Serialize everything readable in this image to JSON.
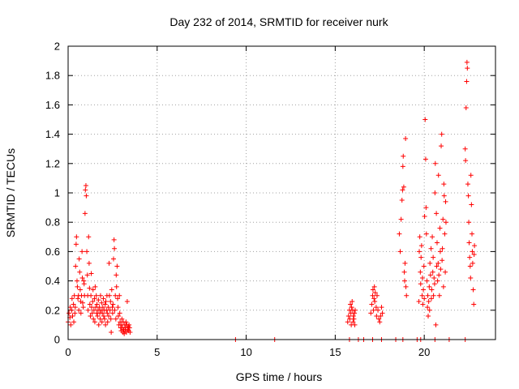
{
  "chart_data": {
    "type": "scatter",
    "title": "Day 232 of 2014, SRMTID for receiver nurk",
    "xlabel": "GPS time / hours",
    "ylabel": "SRMTID / TECUs",
    "xlim": [
      0,
      24
    ],
    "ylim": [
      0,
      2
    ],
    "xticks": [
      0,
      5,
      10,
      15,
      20
    ],
    "yticks": [
      0,
      0.2,
      0.4,
      0.6,
      0.8,
      1,
      1.2,
      1.4,
      1.6,
      1.8,
      2
    ],
    "xtick_labels": [
      "0",
      "5",
      "10",
      "15",
      "20"
    ],
    "ytick_labels": [
      "0",
      "0.2",
      "0.4",
      "0.6",
      "0.8",
      "1",
      "1.2",
      "1.4",
      "1.6",
      "1.8",
      "2"
    ],
    "grid": true,
    "marker": "+",
    "series": [
      {
        "name": "SRMTID",
        "color": "#ff0000",
        "points": [
          [
            0.0,
            0.12
          ],
          [
            0.05,
            0.18
          ],
          [
            0.1,
            0.15
          ],
          [
            0.12,
            0.22
          ],
          [
            0.15,
            0.1
          ],
          [
            0.2,
            0.2
          ],
          [
            0.22,
            0.28
          ],
          [
            0.25,
            0.16
          ],
          [
            0.3,
            0.24
          ],
          [
            0.32,
            0.12
          ],
          [
            0.35,
            0.3
          ],
          [
            0.38,
            0.18
          ],
          [
            0.4,
            0.22
          ],
          [
            0.42,
            0.5
          ],
          [
            0.45,
            0.65
          ],
          [
            0.47,
            0.7
          ],
          [
            0.5,
            0.4
          ],
          [
            0.52,
            0.36
          ],
          [
            0.55,
            0.28
          ],
          [
            0.58,
            0.3
          ],
          [
            0.6,
            0.2
          ],
          [
            0.62,
            0.55
          ],
          [
            0.65,
            0.46
          ],
          [
            0.68,
            0.34
          ],
          [
            0.7,
            0.26
          ],
          [
            0.72,
            0.18
          ],
          [
            0.75,
            0.3
          ],
          [
            0.78,
            0.6
          ],
          [
            0.8,
            0.42
          ],
          [
            0.82,
            0.25
          ],
          [
            0.85,
            0.22
          ],
          [
            0.88,
            0.4
          ],
          [
            0.9,
            0.38
          ],
          [
            0.92,
            0.3
          ],
          [
            0.95,
            0.86
          ],
          [
            0.97,
            1.02
          ],
          [
            1.0,
            1.05
          ],
          [
            1.02,
            0.98
          ],
          [
            1.05,
            0.6
          ],
          [
            1.08,
            0.44
          ],
          [
            1.1,
            0.3
          ],
          [
            1.12,
            0.2
          ],
          [
            1.15,
            0.7
          ],
          [
            1.18,
            0.52
          ],
          [
            1.2,
            0.35
          ],
          [
            1.22,
            0.24
          ],
          [
            1.25,
            0.16
          ],
          [
            1.28,
            0.3
          ],
          [
            1.3,
            0.45
          ],
          [
            1.32,
            0.22
          ],
          [
            1.35,
            0.18
          ],
          [
            1.38,
            0.26
          ],
          [
            1.4,
            0.34
          ],
          [
            1.42,
            0.14
          ],
          [
            1.45,
            0.2
          ],
          [
            1.48,
            0.28
          ],
          [
            1.5,
            0.12
          ],
          [
            1.52,
            0.36
          ],
          [
            1.55,
            0.22
          ],
          [
            1.58,
            0.3
          ],
          [
            1.6,
            0.18
          ],
          [
            1.62,
            0.24
          ],
          [
            1.65,
            0.16
          ],
          [
            1.68,
            0.2
          ],
          [
            1.7,
            0.27
          ],
          [
            1.72,
            0.1
          ],
          [
            1.75,
            0.22
          ],
          [
            1.78,
            0.18
          ],
          [
            1.8,
            0.14
          ],
          [
            1.82,
            0.3
          ],
          [
            1.85,
            0.2
          ],
          [
            1.88,
            0.25
          ],
          [
            1.9,
            0.12
          ],
          [
            1.92,
            0.18
          ],
          [
            1.95,
            0.22
          ],
          [
            1.98,
            0.28
          ],
          [
            2.0,
            0.16
          ],
          [
            2.02,
            0.2
          ],
          [
            2.05,
            0.14
          ],
          [
            2.08,
            0.24
          ],
          [
            2.1,
            0.1
          ],
          [
            2.12,
            0.26
          ],
          [
            2.15,
            0.2
          ],
          [
            2.18,
            0.3
          ],
          [
            2.2,
            0.18
          ],
          [
            2.22,
            0.12
          ],
          [
            2.25,
            0.22
          ],
          [
            2.28,
            0.16
          ],
          [
            2.3,
            0.52
          ],
          [
            2.32,
            0.3
          ],
          [
            2.35,
            0.2
          ],
          [
            2.38,
            0.26
          ],
          [
            2.4,
            0.14
          ],
          [
            2.42,
            0.05
          ],
          [
            2.45,
            0.34
          ],
          [
            2.48,
            0.22
          ],
          [
            2.5,
            0.18
          ],
          [
            2.52,
            0.24
          ],
          [
            2.55,
            0.55
          ],
          [
            2.58,
            0.68
          ],
          [
            2.6,
            0.62
          ],
          [
            2.62,
            0.2
          ],
          [
            2.65,
            0.3
          ],
          [
            2.68,
            0.14
          ],
          [
            2.7,
            0.44
          ],
          [
            2.72,
            0.36
          ],
          [
            2.75,
            0.5
          ],
          [
            2.78,
            0.28
          ],
          [
            2.8,
            0.22
          ],
          [
            2.82,
            0.16
          ],
          [
            2.85,
            0.1
          ],
          [
            2.88,
            0.3
          ],
          [
            2.9,
            0.18
          ],
          [
            2.92,
            0.12
          ],
          [
            2.95,
            0.08
          ],
          [
            2.98,
            0.06
          ],
          [
            3.0,
            0.1
          ],
          [
            3.02,
            0.14
          ],
          [
            3.05,
            0.08
          ],
          [
            3.08,
            0.05
          ],
          [
            3.1,
            0.12
          ],
          [
            3.12,
            0.07
          ],
          [
            3.15,
            0.04
          ],
          [
            3.18,
            0.1
          ],
          [
            3.2,
            0.06
          ],
          [
            3.22,
            0.08
          ],
          [
            3.25,
            0.12
          ],
          [
            3.28,
            0.05
          ],
          [
            3.3,
            0.1
          ],
          [
            3.32,
            0.26
          ],
          [
            3.35,
            0.07
          ],
          [
            3.38,
            0.09
          ],
          [
            3.4,
            0.06
          ],
          [
            3.42,
            0.1
          ],
          [
            3.45,
            0.08
          ],
          [
            3.48,
            0.05
          ],
          [
            15.7,
            0.12
          ],
          [
            15.75,
            0.16
          ],
          [
            15.8,
            0.2
          ],
          [
            15.82,
            0.14
          ],
          [
            15.85,
            0.24
          ],
          [
            15.88,
            0.18
          ],
          [
            15.9,
            0.1
          ],
          [
            15.92,
            0.22
          ],
          [
            15.95,
            0.26
          ],
          [
            15.98,
            0.2
          ],
          [
            16.0,
            0.12
          ],
          [
            16.02,
            0.16
          ],
          [
            16.05,
            0.14
          ],
          [
            16.08,
            0.18
          ],
          [
            16.1,
            0.1
          ],
          [
            16.12,
            0.2
          ],
          [
            17.0,
            0.18
          ],
          [
            17.05,
            0.24
          ],
          [
            17.1,
            0.3
          ],
          [
            17.12,
            0.34
          ],
          [
            17.15,
            0.2
          ],
          [
            17.18,
            0.28
          ],
          [
            17.2,
            0.36
          ],
          [
            17.22,
            0.26
          ],
          [
            17.25,
            0.32
          ],
          [
            17.3,
            0.22
          ],
          [
            17.32,
            0.16
          ],
          [
            17.35,
            0.3
          ],
          [
            17.4,
            0.2
          ],
          [
            17.45,
            0.14
          ],
          [
            17.5,
            0.12
          ],
          [
            17.55,
            0.16
          ],
          [
            17.6,
            0.22
          ],
          [
            17.65,
            0.18
          ],
          [
            18.6,
            0.72
          ],
          [
            18.65,
            0.6
          ],
          [
            18.7,
            0.82
          ],
          [
            18.75,
            0.95
          ],
          [
            18.78,
            1.02
          ],
          [
            18.8,
            1.18
          ],
          [
            18.82,
            1.25
          ],
          [
            18.85,
            1.04
          ],
          [
            18.88,
            0.46
          ],
          [
            18.9,
            0.4
          ],
          [
            18.92,
            0.52
          ],
          [
            18.95,
            1.37
          ],
          [
            18.97,
            0.36
          ],
          [
            19.0,
            0.3
          ],
          [
            19.7,
            0.26
          ],
          [
            19.72,
            0.6
          ],
          [
            19.75,
            0.7
          ],
          [
            19.78,
            0.46
          ],
          [
            19.8,
            0.38
          ],
          [
            19.82,
            0.56
          ],
          [
            19.85,
            0.64
          ],
          [
            19.88,
            0.3
          ],
          [
            19.9,
            0.42
          ],
          [
            19.92,
            0.24
          ],
          [
            19.95,
            0.34
          ],
          [
            19.98,
            0.5
          ],
          [
            20.0,
            0.28
          ],
          [
            20.02,
            0.84
          ],
          [
            20.05,
            1.5
          ],
          [
            20.08,
            1.23
          ],
          [
            20.1,
            0.9
          ],
          [
            20.12,
            0.72
          ],
          [
            20.15,
            0.4
          ],
          [
            20.18,
            0.22
          ],
          [
            20.2,
            0.3
          ],
          [
            20.22,
            0.16
          ],
          [
            20.25,
            0.26
          ],
          [
            20.28,
            0.36
          ],
          [
            20.3,
            0.2
          ],
          [
            20.32,
            0.52
          ],
          [
            20.35,
            0.44
          ],
          [
            20.38,
            0.62
          ],
          [
            20.4,
            0.28
          ],
          [
            20.42,
            0.34
          ],
          [
            20.45,
            0.7
          ],
          [
            20.48,
            0.46
          ],
          [
            20.5,
            0.56
          ],
          [
            20.52,
            0.3
          ],
          [
            20.55,
            0.42
          ],
          [
            20.58,
            0.38
          ],
          [
            20.6,
            1.0
          ],
          [
            20.62,
            1.2
          ],
          [
            20.65,
            0.1
          ],
          [
            20.68,
            0.86
          ],
          [
            20.7,
            0.5
          ],
          [
            20.72,
            0.66
          ],
          [
            20.75,
            0.4
          ],
          [
            20.78,
            0.52
          ],
          [
            20.8,
            1.12
          ],
          [
            20.82,
            0.44
          ],
          [
            20.85,
            0.3
          ],
          [
            20.88,
            0.76
          ],
          [
            20.9,
            0.6
          ],
          [
            20.92,
            0.48
          ],
          [
            20.95,
            1.32
          ],
          [
            20.98,
            1.4
          ],
          [
            21.0,
            0.54
          ],
          [
            21.02,
            0.62
          ],
          [
            21.05,
            0.82
          ],
          [
            21.08,
            0.36
          ],
          [
            21.1,
            1.06
          ],
          [
            21.12,
            0.98
          ],
          [
            21.15,
            0.72
          ],
          [
            21.18,
            0.46
          ],
          [
            21.2,
            0.94
          ],
          [
            21.22,
            0.8
          ],
          [
            22.3,
            1.3
          ],
          [
            22.32,
            1.22
          ],
          [
            22.35,
            1.58
          ],
          [
            22.38,
            1.76
          ],
          [
            22.4,
            1.89
          ],
          [
            22.42,
            1.85
          ],
          [
            22.45,
            1.06
          ],
          [
            22.48,
            0.98
          ],
          [
            22.5,
            0.8
          ],
          [
            22.52,
            0.66
          ],
          [
            22.55,
            0.56
          ],
          [
            22.58,
            0.5
          ],
          [
            22.6,
            0.42
          ],
          [
            22.62,
            1.12
          ],
          [
            22.65,
            0.92
          ],
          [
            22.68,
            0.72
          ],
          [
            22.7,
            0.6
          ],
          [
            22.72,
            0.52
          ],
          [
            22.75,
            0.34
          ],
          [
            22.78,
            0.24
          ],
          [
            22.8,
            0.58
          ],
          [
            22.82,
            0.64
          ],
          [
            9.4,
            0.0
          ],
          [
            11.6,
            0.0
          ],
          [
            15.8,
            0.0
          ],
          [
            16.3,
            0.0
          ],
          [
            16.6,
            0.0
          ],
          [
            17.1,
            0.0
          ],
          [
            17.6,
            0.0
          ],
          [
            18.4,
            0.0
          ],
          [
            18.8,
            0.0
          ],
          [
            19.6,
            0.0
          ],
          [
            19.8,
            0.0
          ],
          [
            20.6,
            0.0
          ],
          [
            21.4,
            0.0
          ],
          [
            22.3,
            0.0
          ]
        ]
      }
    ]
  }
}
